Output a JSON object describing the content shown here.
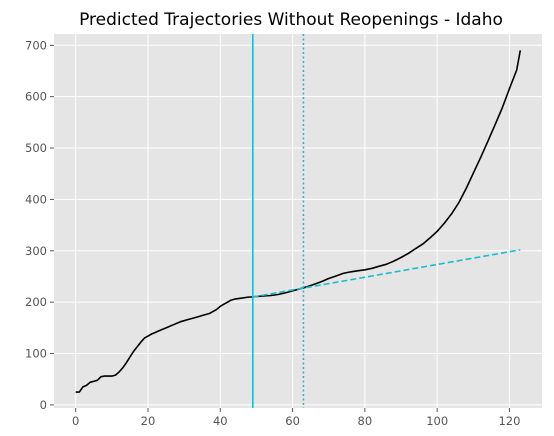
{
  "chart_data": {
    "type": "line",
    "title": "Predicted Trajectories Without Reopenings - Idaho",
    "xlabel": "",
    "ylabel": "",
    "xlim": [
      -6,
      129
    ],
    "ylim": [
      -6,
      722
    ],
    "xticks": [
      0,
      20,
      40,
      60,
      80,
      100,
      120
    ],
    "yticks": [
      0,
      100,
      200,
      300,
      400,
      500,
      600,
      700
    ],
    "grid": true,
    "legend": "none",
    "series": [
      {
        "color": "#000000",
        "style": "solid",
        "x": [
          0,
          1,
          2,
          3,
          4,
          5,
          6,
          7,
          8,
          9,
          10,
          11,
          12,
          13,
          14,
          15,
          16,
          17,
          18,
          19,
          20,
          21,
          22,
          23,
          24,
          25,
          26,
          27,
          28,
          29,
          30,
          31,
          32,
          33,
          34,
          35,
          36,
          37,
          38,
          39,
          40,
          41,
          42,
          43,
          44,
          45,
          46,
          47,
          48,
          49,
          50,
          52,
          54,
          56,
          58,
          60,
          62,
          64,
          66,
          68,
          70,
          72,
          74,
          76,
          78,
          80,
          82,
          84,
          86,
          88,
          90,
          92,
          94,
          96,
          98,
          100,
          102,
          104,
          106,
          108,
          110,
          112,
          114,
          116,
          118,
          120,
          122,
          123
        ],
        "y": [
          25,
          25,
          35,
          38,
          44,
          46,
          48,
          55,
          56,
          56,
          56,
          58,
          64,
          72,
          82,
          93,
          104,
          113,
          122,
          130,
          134,
          138,
          141,
          144,
          147,
          150,
          153,
          156,
          159,
          162,
          164,
          166,
          168,
          170,
          172,
          174,
          176,
          178,
          182,
          186,
          192,
          196,
          200,
          204,
          206,
          207,
          208,
          209,
          210,
          210,
          211,
          212,
          213,
          215,
          218,
          222,
          226,
          230,
          235,
          240,
          246,
          251,
          256,
          259,
          261,
          263,
          266,
          270,
          274,
          280,
          287,
          295,
          304,
          313,
          325,
          338,
          354,
          372,
          394,
          421,
          451,
          481,
          513,
          545,
          578,
          616,
          652,
          690
        ]
      },
      {
        "color": "#17becf",
        "style": "dashed",
        "x": [
          49,
          123
        ],
        "y": [
          210,
          302
        ]
      }
    ],
    "vlines": [
      {
        "x": 49,
        "color": "#17becf",
        "style": "solid"
      },
      {
        "x": 63,
        "color": "#17becf",
        "style": "dotted"
      }
    ]
  }
}
